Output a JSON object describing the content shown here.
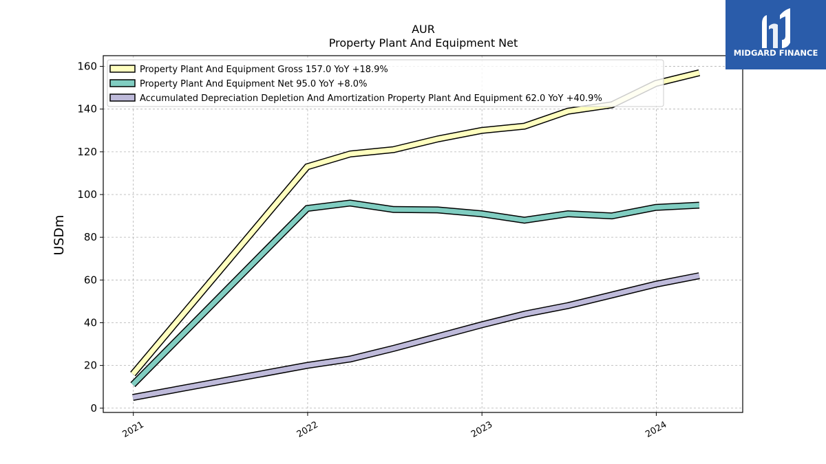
{
  "logo": {
    "text": "MIDGARD FINANCE",
    "bg": "#2a5caa"
  },
  "chart_data": {
    "type": "line",
    "title": "AUR",
    "subtitle": "Property Plant And Equipment Net",
    "xlabel": "",
    "ylabel": "USDm",
    "ylim": [
      -2,
      165
    ],
    "xlim": [
      "2020-10-30",
      "2024-06-30"
    ],
    "yticks": [
      0,
      20,
      40,
      60,
      80,
      100,
      120,
      140,
      160
    ],
    "xticks": [
      "2021",
      "2022",
      "2023",
      "2024"
    ],
    "grid": true,
    "legend_position": "top-left",
    "series": [
      {
        "name": "Property Plant And Equipment Gross  157.0 YoY +18.9%",
        "color": "#ffffbf",
        "x": [
          "2020-12-31",
          "2021-12-31",
          "2022-03-31",
          "2022-06-30",
          "2022-09-30",
          "2022-12-31",
          "2023-03-31",
          "2023-06-30",
          "2023-09-30",
          "2023-12-31",
          "2024-03-31"
        ],
        "values": [
          16,
          113,
          119,
          121,
          126,
          130,
          132,
          139,
          142,
          152,
          157
        ]
      },
      {
        "name": "Property Plant And Equipment Net  95.0 YoY +8.0%",
        "color": "#80cdc1",
        "x": [
          "2020-12-31",
          "2021-12-31",
          "2022-03-31",
          "2022-06-30",
          "2022-09-30",
          "2022-12-31",
          "2023-03-31",
          "2023-06-30",
          "2023-09-30",
          "2023-12-31",
          "2024-03-31"
        ],
        "values": [
          11,
          93.5,
          96,
          93,
          92.8,
          91,
          88,
          91,
          90,
          94,
          95
        ]
      },
      {
        "name": "Accumulated Depreciation Depletion And Amortization Property Plant And Equipment  62.0 YoY +40.9%",
        "color": "#bebada",
        "x": [
          "2020-12-31",
          "2021-12-31",
          "2022-03-31",
          "2022-06-30",
          "2022-09-30",
          "2022-12-31",
          "2023-03-31",
          "2023-06-30",
          "2023-09-30",
          "2023-12-31",
          "2024-03-31"
        ],
        "values": [
          5,
          20,
          23,
          28,
          33.5,
          39,
          44,
          48,
          53,
          58,
          62
        ]
      }
    ]
  }
}
